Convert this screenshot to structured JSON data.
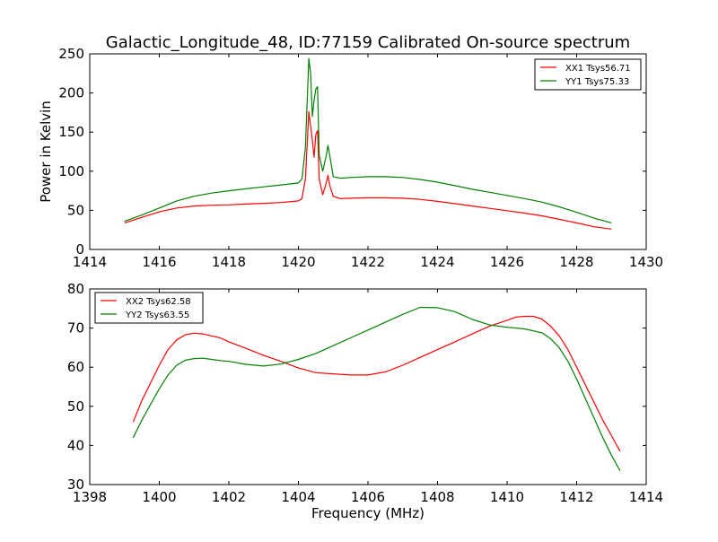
{
  "figure": {
    "title": "Galactic_Longitude_48, ID:77159 Calibrated On-source spectrum"
  },
  "chart_data": [
    {
      "type": "line",
      "panel": "top",
      "title": "Galactic_Longitude_48, ID:77159 Calibrated On-source spectrum",
      "xlabel": "",
      "ylabel": "Power in Kelvin",
      "xlim": [
        1414,
        1430
      ],
      "ylim": [
        0,
        250
      ],
      "xticks": [
        1414,
        1416,
        1418,
        1420,
        1422,
        1424,
        1426,
        1428,
        1430
      ],
      "yticks": [
        0,
        50,
        100,
        150,
        200,
        250
      ],
      "legend_position": "top-right",
      "grid": false,
      "series": [
        {
          "name": "XX1 Tsys56.71",
          "color": "#ff0000",
          "x": [
            1415.0,
            1415.5,
            1416.0,
            1416.5,
            1417.0,
            1417.5,
            1418.0,
            1418.5,
            1419.0,
            1419.5,
            1420.0,
            1420.1,
            1420.2,
            1420.3,
            1420.4,
            1420.45,
            1420.5,
            1420.55,
            1420.6,
            1420.7,
            1420.8,
            1420.85,
            1420.9,
            1421.0,
            1421.2,
            1421.5,
            1422.0,
            1422.5,
            1423.0,
            1423.5,
            1424.0,
            1424.5,
            1425.0,
            1425.5,
            1426.0,
            1426.5,
            1427.0,
            1427.5,
            1428.0,
            1428.5,
            1429.0
          ],
          "y": [
            34,
            41,
            48,
            53,
            55.5,
            56.5,
            57,
            58,
            59,
            60,
            62,
            65,
            90,
            176,
            140,
            118,
            147,
            152,
            90,
            70,
            85,
            95,
            82,
            68,
            65,
            65.5,
            66,
            66,
            65.5,
            64,
            61.5,
            58.5,
            55.5,
            52.5,
            49.5,
            46.5,
            43,
            38.5,
            34,
            29,
            26
          ]
        },
        {
          "name": "YY1 Tsys75.33",
          "color": "#008000",
          "x": [
            1415.0,
            1415.5,
            1416.0,
            1416.5,
            1417.0,
            1417.5,
            1418.0,
            1418.5,
            1419.0,
            1419.5,
            1420.0,
            1420.1,
            1420.2,
            1420.3,
            1420.35,
            1420.4,
            1420.45,
            1420.5,
            1420.55,
            1420.6,
            1420.7,
            1420.8,
            1420.85,
            1420.9,
            1421.0,
            1421.2,
            1421.5,
            1422.0,
            1422.5,
            1423.0,
            1423.5,
            1424.0,
            1424.5,
            1425.0,
            1425.5,
            1426.0,
            1426.5,
            1427.0,
            1427.5,
            1428.0,
            1428.5,
            1429.0
          ],
          "y": [
            36,
            44,
            53,
            62,
            68,
            72,
            75,
            77.5,
            80,
            82.5,
            85,
            90,
            130,
            244,
            225,
            170,
            190,
            205,
            208,
            120,
            100,
            120,
            133,
            120,
            93,
            91,
            92,
            93,
            93,
            92,
            89.5,
            86,
            81.5,
            77,
            73,
            69,
            65,
            60.5,
            54.5,
            47.5,
            40,
            34
          ]
        }
      ]
    },
    {
      "type": "line",
      "panel": "bottom",
      "title": "",
      "xlabel": "Frequency (MHz)",
      "ylabel": "",
      "xlim": [
        1398,
        1414
      ],
      "ylim": [
        30,
        80
      ],
      "xticks": [
        1398,
        1400,
        1402,
        1404,
        1406,
        1408,
        1410,
        1412,
        1414
      ],
      "yticks": [
        30,
        40,
        50,
        60,
        70,
        80
      ],
      "legend_position": "top-left",
      "grid": false,
      "series": [
        {
          "name": "XX2 Tsys62.58",
          "color": "#ff0000",
          "x": [
            1399.25,
            1399.5,
            1399.75,
            1400.0,
            1400.25,
            1400.5,
            1400.75,
            1401.0,
            1401.25,
            1401.5,
            1401.75,
            1402.0,
            1402.5,
            1403.0,
            1403.5,
            1404.0,
            1404.5,
            1405.0,
            1405.5,
            1406.0,
            1406.5,
            1407.0,
            1407.5,
            1408.0,
            1408.5,
            1409.0,
            1409.5,
            1410.0,
            1410.25,
            1410.5,
            1410.75,
            1411.0,
            1411.25,
            1411.5,
            1411.75,
            1412.0,
            1412.25,
            1412.5,
            1412.75,
            1413.0,
            1413.25
          ],
          "y": [
            46,
            51.5,
            56,
            60.5,
            64.5,
            67,
            68.3,
            68.7,
            68.5,
            68,
            67.5,
            66.5,
            64.8,
            63,
            61.5,
            59.8,
            58.6,
            58.3,
            58,
            58,
            58.8,
            60.5,
            62.5,
            64.5,
            66.5,
            68.5,
            70.5,
            72,
            72.8,
            73,
            73,
            72.3,
            70.5,
            68,
            64.5,
            60,
            55.5,
            51,
            46.5,
            42.5,
            38.5
          ]
        },
        {
          "name": "YY2 Tsys63.55",
          "color": "#008000",
          "x": [
            1399.25,
            1399.5,
            1399.75,
            1400.0,
            1400.25,
            1400.5,
            1400.75,
            1401.0,
            1401.25,
            1401.5,
            1401.75,
            1402.0,
            1402.5,
            1403.0,
            1403.5,
            1404.0,
            1404.5,
            1405.0,
            1405.5,
            1406.0,
            1406.5,
            1407.0,
            1407.5,
            1408.0,
            1408.5,
            1409.0,
            1409.5,
            1410.0,
            1410.5,
            1411.0,
            1411.25,
            1411.5,
            1411.75,
            1412.0,
            1412.25,
            1412.5,
            1412.75,
            1413.0,
            1413.25
          ],
          "y": [
            42,
            46.5,
            50.5,
            54.5,
            58,
            60.5,
            61.8,
            62.2,
            62.3,
            62,
            61.7,
            61.5,
            60.7,
            60.3,
            60.8,
            62,
            63.5,
            65.5,
            67.5,
            69.5,
            71.5,
            73.5,
            75.3,
            75.2,
            74.2,
            72.2,
            70.8,
            70.2,
            69.8,
            68.8,
            67.3,
            65,
            61.5,
            57,
            52,
            47,
            42,
            37.5,
            33.5
          ]
        }
      ]
    }
  ]
}
